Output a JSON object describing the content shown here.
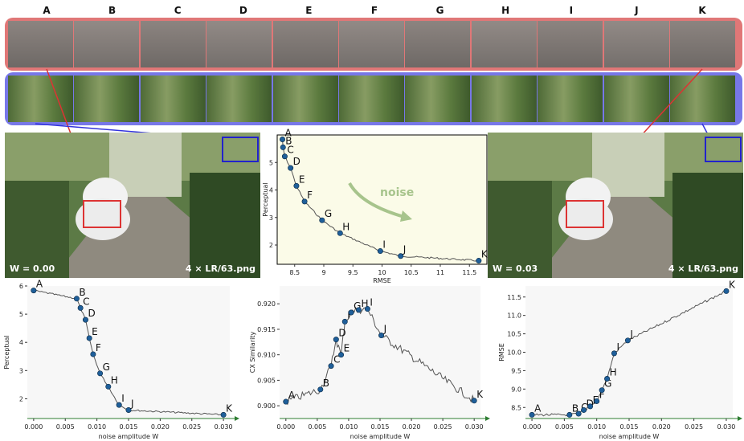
{
  "columns": [
    "A",
    "B",
    "C",
    "D",
    "E",
    "F",
    "G",
    "H",
    "I",
    "J",
    "K"
  ],
  "left_photo": {
    "w_label": "W = 0.00",
    "file_label": "4 × LR/63.png"
  },
  "right_photo": {
    "w_label": "W = 0.03",
    "file_label": "4 × LR/63.png"
  },
  "colors": {
    "red_strip": "#e07777",
    "blue_strip": "#7777e8",
    "point": "#1f5f9a",
    "curve": "#555555",
    "axis": "#2e7d32"
  },
  "chart_data": [
    {
      "type": "line",
      "xlabel": "RMSE",
      "ylabel": "Perceptual",
      "xlim": [
        8.2,
        11.8
      ],
      "ylim": [
        1.3,
        6.0
      ],
      "xticks": [
        8.5,
        9.0,
        9.5,
        10.0,
        10.5,
        11.0,
        11.5
      ],
      "yticks": [
        2,
        3,
        4,
        5
      ],
      "annotation": "noise",
      "points": [
        {
          "label": "A",
          "x": 8.29,
          "y": 5.84
        },
        {
          "label": "B",
          "x": 8.3,
          "y": 5.55
        },
        {
          "label": "C",
          "x": 8.33,
          "y": 5.22
        },
        {
          "label": "D",
          "x": 8.43,
          "y": 4.8
        },
        {
          "label": "E",
          "x": 8.53,
          "y": 4.15
        },
        {
          "label": "F",
          "x": 8.67,
          "y": 3.58
        },
        {
          "label": "G",
          "x": 8.97,
          "y": 2.9
        },
        {
          "label": "H",
          "x": 9.28,
          "y": 2.43
        },
        {
          "label": "I",
          "x": 9.97,
          "y": 1.78
        },
        {
          "label": "J",
          "x": 10.32,
          "y": 1.6
        },
        {
          "label": "K",
          "x": 11.66,
          "y": 1.43
        }
      ]
    },
    {
      "type": "line",
      "xlabel": "noise amplitude W",
      "ylabel": "Perceptual",
      "xlim": [
        -0.001,
        0.031
      ],
      "ylim": [
        1.3,
        6.0
      ],
      "xticks": [
        "0.000",
        "0.005",
        "0.010",
        "0.015",
        "0.020",
        "0.025",
        "0.030"
      ],
      "yticks": [
        2,
        3,
        4,
        5,
        6
      ],
      "points": [
        {
          "label": "A",
          "x": 0.0,
          "y": 5.84
        },
        {
          "label": "B",
          "x": 0.0068,
          "y": 5.55
        },
        {
          "label": "C",
          "x": 0.0074,
          "y": 5.22
        },
        {
          "label": "D",
          "x": 0.0082,
          "y": 4.8
        },
        {
          "label": "E",
          "x": 0.0088,
          "y": 4.15
        },
        {
          "label": "F",
          "x": 0.0094,
          "y": 3.58
        },
        {
          "label": "G",
          "x": 0.0105,
          "y": 2.9
        },
        {
          "label": "H",
          "x": 0.0118,
          "y": 2.43
        },
        {
          "label": "I",
          "x": 0.0135,
          "y": 1.78
        },
        {
          "label": "J",
          "x": 0.015,
          "y": 1.6
        },
        {
          "label": "K",
          "x": 0.03,
          "y": 1.43
        }
      ]
    },
    {
      "type": "line",
      "xlabel": "noise amplitude W",
      "ylabel": "CX Similarity",
      "xlim": [
        -0.001,
        0.031
      ],
      "ylim": [
        0.8975,
        0.9235
      ],
      "xticks": [
        "0.000",
        "0.005",
        "0.010",
        "0.015",
        "0.020",
        "0.025",
        "0.030"
      ],
      "yticks": [
        "0.900",
        "0.905",
        "0.910",
        "0.915",
        "0.920"
      ],
      "points": [
        {
          "label": "A",
          "x": 0.0,
          "y": 0.9008
        },
        {
          "label": "B",
          "x": 0.0055,
          "y": 0.9032
        },
        {
          "label": "C",
          "x": 0.0072,
          "y": 0.9078
        },
        {
          "label": "D",
          "x": 0.008,
          "y": 0.913
        },
        {
          "label": "E",
          "x": 0.0088,
          "y": 0.91
        },
        {
          "label": "F",
          "x": 0.0094,
          "y": 0.9165
        },
        {
          "label": "G",
          "x": 0.0104,
          "y": 0.9183
        },
        {
          "label": "H",
          "x": 0.0116,
          "y": 0.9188
        },
        {
          "label": "I",
          "x": 0.013,
          "y": 0.919
        },
        {
          "label": "J",
          "x": 0.0152,
          "y": 0.9138
        },
        {
          "label": "K",
          "x": 0.03,
          "y": 0.901
        }
      ]
    },
    {
      "type": "line",
      "xlabel": "noise amplitude W",
      "ylabel": "RMSE",
      "xlim": [
        -0.001,
        0.031
      ],
      "ylim": [
        8.2,
        11.8
      ],
      "xticks": [
        "0.000",
        "0.005",
        "0.010",
        "0.015",
        "0.020",
        "0.025",
        "0.030"
      ],
      "yticks": [
        "8.5",
        "9.0",
        "9.5",
        "10.0",
        "10.5",
        "11.0",
        "11.5"
      ],
      "points": [
        {
          "label": "A",
          "x": 0.0,
          "y": 8.3
        },
        {
          "label": "B",
          "x": 0.0058,
          "y": 8.3
        },
        {
          "label": "C",
          "x": 0.0072,
          "y": 8.33
        },
        {
          "label": "D",
          "x": 0.008,
          "y": 8.43
        },
        {
          "label": "E",
          "x": 0.009,
          "y": 8.53
        },
        {
          "label": "F",
          "x": 0.01,
          "y": 8.67
        },
        {
          "label": "G",
          "x": 0.0108,
          "y": 8.97
        },
        {
          "label": "H",
          "x": 0.0116,
          "y": 9.28
        },
        {
          "label": "I",
          "x": 0.0127,
          "y": 9.97
        },
        {
          "label": "J",
          "x": 0.0148,
          "y": 10.32
        },
        {
          "label": "K",
          "x": 0.03,
          "y": 11.66
        }
      ]
    }
  ]
}
